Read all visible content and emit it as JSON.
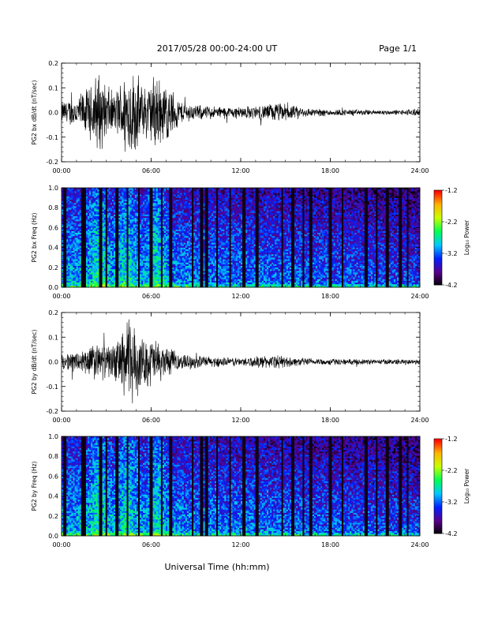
{
  "header": {
    "title": "2017/05/28  00:00-24:00 UT",
    "page": "Page 1/1"
  },
  "xlabel": "Universal Time (hh:mm)",
  "time_ticks": [
    "00:00",
    "06:00",
    "12:00",
    "18:00",
    "24:00"
  ],
  "colorbar": {
    "label": "Log₁₀ Power",
    "ticks": [
      "-1.2",
      "-2.2",
      "-3.2",
      "-4.2"
    ],
    "range": [
      -4.2,
      -1.2
    ],
    "colors": [
      "#000000",
      "#5a008c",
      "#0020ff",
      "#00c8ff",
      "#00ff50",
      "#c8ff00",
      "#ffb400",
      "#ff0000"
    ]
  },
  "chart_data": [
    {
      "type": "line",
      "id": "bx-wave",
      "ylabel": "PG2 bx dB/dt (nT/sec)",
      "ylim": [
        -0.2,
        0.2
      ],
      "yticks": [
        "0.2",
        "0.1",
        "0.0",
        "-0.1",
        "-0.2"
      ],
      "xlim_hours": [
        0,
        24
      ],
      "envelope": {
        "hours": [
          0,
          1,
          1.5,
          2,
          2.4,
          2.6,
          3,
          3.5,
          4,
          4.3,
          4.6,
          5,
          5.5,
          6,
          6.3,
          6.6,
          7,
          7.5,
          8,
          9,
          10,
          11,
          12,
          13,
          14,
          14.5,
          15,
          15.5,
          16,
          17,
          18,
          19,
          20,
          21,
          22,
          23,
          23.7,
          24
        ],
        "amplitude": [
          0.05,
          0.07,
          0.1,
          0.12,
          0.2,
          0.17,
          0.14,
          0.08,
          0.15,
          0.2,
          0.2,
          0.18,
          0.12,
          0.15,
          0.19,
          0.16,
          0.13,
          0.1,
          0.05,
          0.035,
          0.03,
          0.025,
          0.028,
          0.03,
          0.04,
          0.045,
          0.04,
          0.03,
          0.025,
          0.018,
          0.015,
          0.014,
          0.013,
          0.012,
          0.011,
          0.012,
          0.02,
          0.012
        ]
      }
    },
    {
      "type": "heatmap",
      "id": "bx-spec",
      "ylabel": "PG2 bx Freq (Hz)",
      "ylim": [
        0,
        1
      ],
      "yticks": [
        "1.0",
        "0.8",
        "0.6",
        "0.4",
        "0.2",
        "0.0"
      ],
      "xlim_hours": [
        0,
        24
      ],
      "gap_hours": [
        0.2,
        1.4,
        1.6,
        2.6,
        3.0,
        3.7,
        4.4,
        5.2,
        6.0,
        6.7,
        7.3,
        8.8,
        9.4,
        9.7,
        10.4,
        11.3,
        12.2,
        13.1,
        14.8,
        15.5,
        16.2,
        16.7,
        18.0,
        18.8,
        20.4,
        21.1,
        21.8,
        22.7,
        23.2
      ],
      "hot_hours": [
        2.5,
        4.4,
        6.4
      ]
    },
    {
      "type": "line",
      "id": "by-wave",
      "ylabel": "PG2 by dB/dt (nT/sec)",
      "ylim": [
        -0.2,
        0.2
      ],
      "yticks": [
        "0.2",
        "0.1",
        "0.0",
        "-0.1",
        "-0.2"
      ],
      "xlim_hours": [
        0,
        24
      ],
      "envelope": {
        "hours": [
          0,
          1,
          1.5,
          2,
          2.5,
          3,
          3.5,
          4,
          4.3,
          4.6,
          5,
          5.5,
          6,
          6.5,
          7,
          7.5,
          8,
          9,
          10,
          11,
          12,
          13,
          14,
          14.5,
          15,
          15.5,
          16,
          17,
          18,
          19,
          20,
          21,
          22,
          23,
          24
        ],
        "amplitude": [
          0.03,
          0.05,
          0.06,
          0.08,
          0.09,
          0.07,
          0.08,
          0.13,
          0.2,
          0.2,
          0.14,
          0.1,
          0.12,
          0.09,
          0.07,
          0.05,
          0.035,
          0.03,
          0.025,
          0.02,
          0.02,
          0.025,
          0.03,
          0.03,
          0.025,
          0.02,
          0.018,
          0.016,
          0.015,
          0.013,
          0.012,
          0.012,
          0.012,
          0.013,
          0.012
        ]
      }
    },
    {
      "type": "heatmap",
      "id": "by-spec",
      "ylabel": "PG2 by Freq (Hz)",
      "ylim": [
        0,
        1
      ],
      "yticks": [
        "1.0",
        "0.8",
        "0.6",
        "0.4",
        "0.2",
        "0.0"
      ],
      "xlim_hours": [
        0,
        24
      ],
      "gap_hours": [
        0.2,
        1.4,
        1.6,
        2.6,
        3.0,
        3.7,
        4.4,
        5.2,
        6.0,
        6.7,
        7.3,
        8.8,
        9.4,
        9.7,
        10.4,
        11.3,
        12.2,
        13.1,
        14.8,
        15.5,
        16.2,
        16.7,
        18.0,
        18.8,
        20.4,
        21.1,
        21.8,
        22.7,
        23.2
      ],
      "hot_hours": [
        2.5,
        4.4,
        6.4
      ]
    }
  ]
}
